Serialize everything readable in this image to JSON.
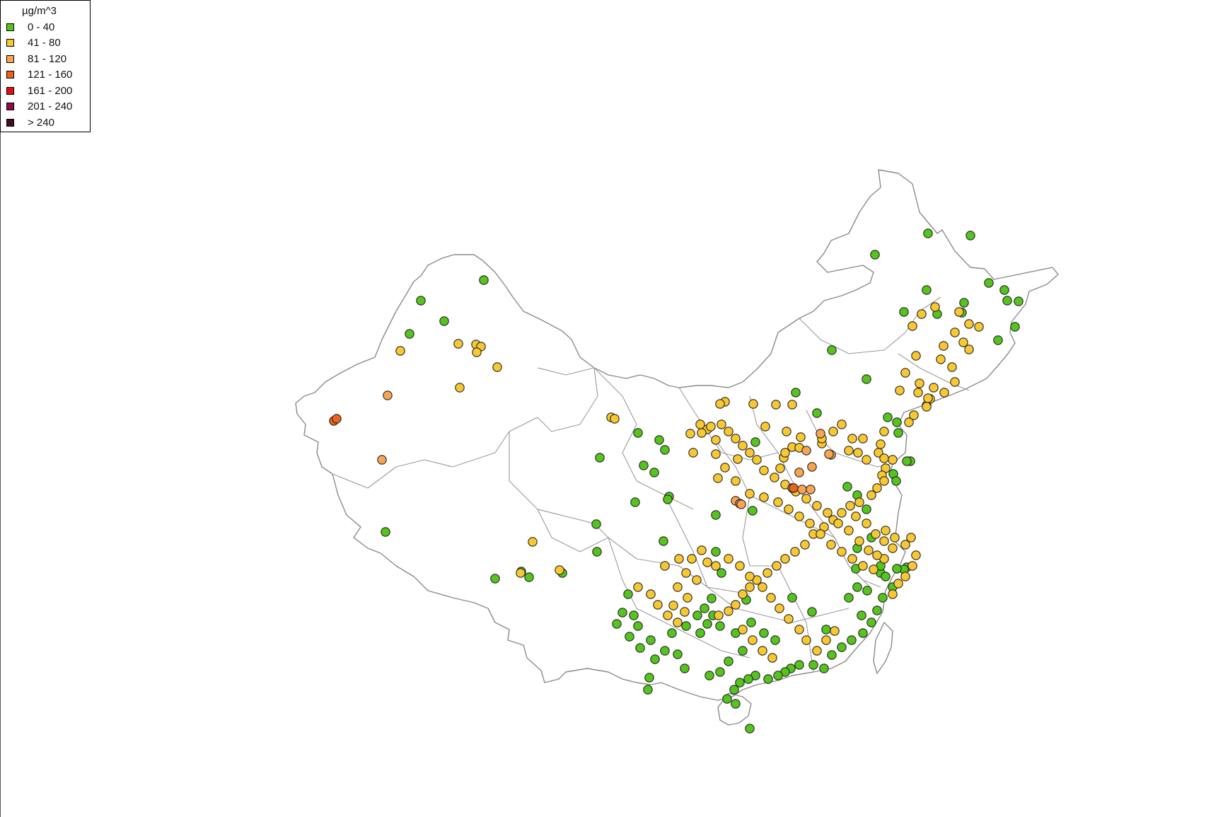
{
  "legend": {
    "title": "µg/m^3",
    "classes": [
      {
        "label": "0 - 40",
        "color": "#55c51e"
      },
      {
        "label": "41 - 80",
        "color": "#f7c831"
      },
      {
        "label": "81 - 120",
        "color": "#f7a550"
      },
      {
        "label": "121 - 160",
        "color": "#e9631c"
      },
      {
        "label": "161 - 200",
        "color": "#e01010"
      },
      {
        "label": "201 - 240",
        "color": "#8c0d4a"
      },
      {
        "label": "> 240",
        "color": "#4a0d1e"
      }
    ]
  }
}
